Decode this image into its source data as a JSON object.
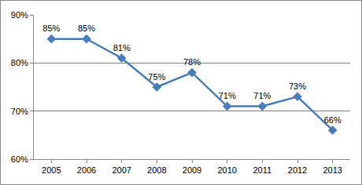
{
  "chart_data": {
    "type": "line",
    "categories": [
      "2005",
      "2006",
      "2007",
      "2008",
      "2009",
      "2010",
      "2011",
      "2012",
      "2013"
    ],
    "values": [
      85,
      85,
      81,
      75,
      78,
      71,
      71,
      73,
      66
    ],
    "value_labels": [
      "85%",
      "85%",
      "81%",
      "75%",
      "78%",
      "71%",
      "71%",
      "73%",
      "66%"
    ],
    "color": "#4a7ebb",
    "marker": "diamond",
    "line_style": "solid",
    "ylim": [
      60,
      90
    ],
    "yticks": [
      {
        "value": 60,
        "label": "60%"
      },
      {
        "value": 70,
        "label": "70%"
      },
      {
        "value": 80,
        "label": "80%"
      },
      {
        "value": 90,
        "label": "90%"
      }
    ],
    "grid": true,
    "data_labels": true
  }
}
